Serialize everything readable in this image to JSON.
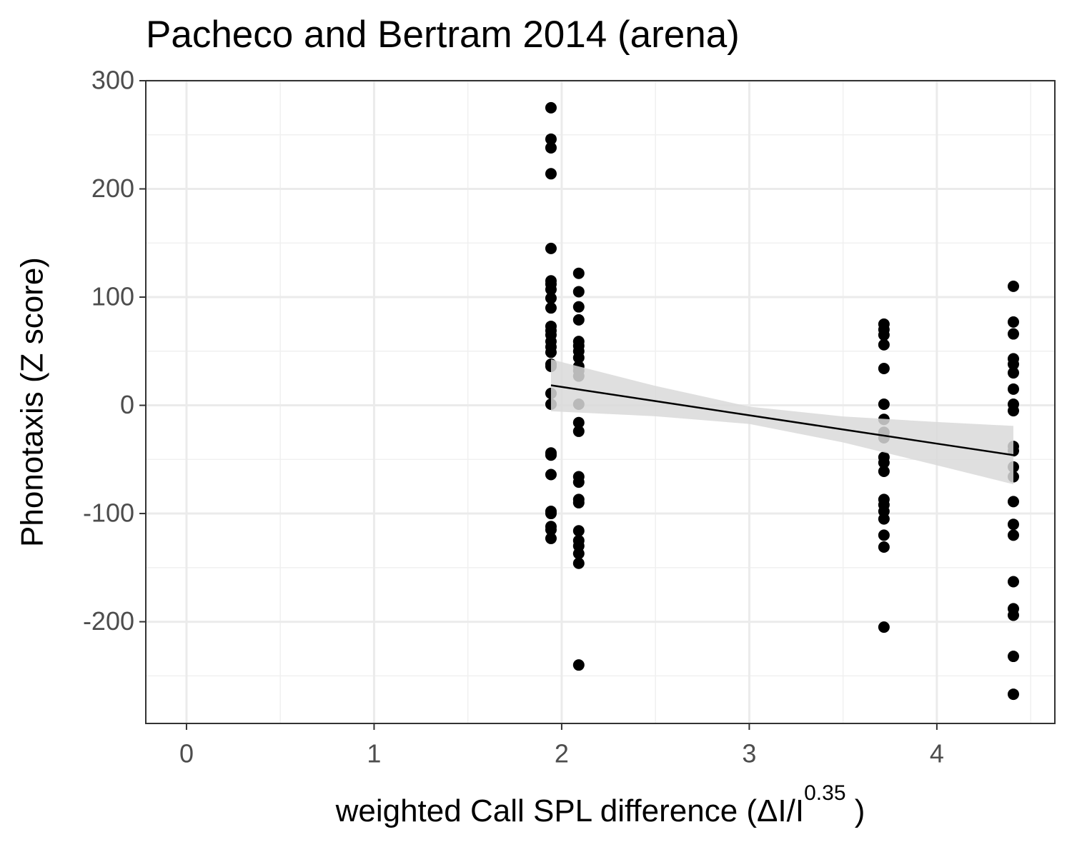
{
  "chart_data": {
    "type": "scatter",
    "title": "Pacheco and Bertram 2014 (arena)",
    "x_label": {
      "text": "weighted  Call SPL  difference (ΔI/I",
      "superscript": "0.35",
      "suffix": " )"
    },
    "y_label": "Phonotaxis (Z score)",
    "xlim": [
      -0.217,
      4.629
    ],
    "ylim": [
      -294,
      300
    ],
    "xticks": [
      0,
      1,
      2,
      3,
      4
    ],
    "yticks": [
      -200,
      -100,
      0,
      100,
      200,
      300
    ],
    "grid": true,
    "color": "#000000",
    "series": [
      {
        "x": [
          1.943,
          1.943,
          1.943,
          1.943,
          1.943,
          1.943,
          1.943,
          1.943,
          1.943,
          1.943,
          1.943,
          1.943,
          1.943,
          1.943,
          1.943,
          1.943,
          1.943,
          1.943,
          1.943,
          1.943,
          1.943,
          1.943,
          1.943,
          1.943,
          1.943,
          1.943,
          1.943,
          1.943
        ],
        "values": [
          275,
          246,
          238,
          214,
          145,
          115,
          112,
          107,
          99,
          90,
          73,
          69,
          65,
          59,
          54,
          49,
          38,
          36,
          11,
          1,
          -44,
          -46,
          -64,
          -98,
          -100,
          -112,
          -115,
          -123
        ]
      },
      {
        "x": [
          2.091,
          2.091,
          2.091,
          2.091,
          2.091,
          2.091,
          2.091,
          2.091,
          2.091,
          2.091,
          2.091,
          2.091,
          2.091,
          2.091,
          2.091,
          2.091,
          2.091,
          2.091,
          2.091,
          2.091,
          2.091,
          2.091,
          2.091,
          2.091
        ],
        "values": [
          122,
          105,
          91,
          79,
          59,
          55,
          50,
          44,
          36,
          32,
          27,
          1,
          -16,
          -24,
          -66,
          -71,
          -87,
          -90,
          -116,
          -125,
          -130,
          -137,
          -146,
          -240
        ]
      },
      {
        "x": [
          3.718,
          3.718,
          3.718,
          3.718,
          3.718,
          3.718,
          3.718,
          3.718,
          3.718,
          3.718,
          3.718,
          3.718,
          3.718,
          3.718,
          3.718,
          3.718,
          3.718,
          3.718,
          3.718
        ],
        "values": [
          75,
          70,
          65,
          56,
          34,
          1,
          -13,
          -25,
          -30,
          -48,
          -53,
          -61,
          -87,
          -92,
          -98,
          -105,
          -120,
          -131,
          -205
        ]
      },
      {
        "x": [
          4.408,
          4.408,
          4.408,
          4.408,
          4.408,
          4.408,
          4.408,
          4.408,
          4.408,
          4.408,
          4.408,
          4.408,
          4.408,
          4.408,
          4.408,
          4.408,
          4.408,
          4.408,
          4.408,
          4.408,
          4.408
        ],
        "values": [
          110,
          77,
          66,
          43,
          38,
          30,
          15,
          1,
          -5,
          -38,
          -42,
          -57,
          -66,
          -89,
          -110,
          -120,
          -163,
          -188,
          -194,
          -232,
          -267
        ]
      }
    ],
    "fit": {
      "x": [
        1.943,
        2.5,
        3.0,
        3.5,
        4.0,
        4.408
      ],
      "values": [
        18.5,
        3.9,
        -9.2,
        -22.3,
        -35.4,
        -46
      ],
      "lower": [
        -5.5,
        -10.1,
        -17.2,
        -34.3,
        -55.4,
        -73
      ],
      "upper": [
        42.5,
        17.9,
        -1.2,
        -10.3,
        -15.4,
        -19
      ],
      "color": "#000000",
      "band_color": "#d9d9d9"
    }
  }
}
